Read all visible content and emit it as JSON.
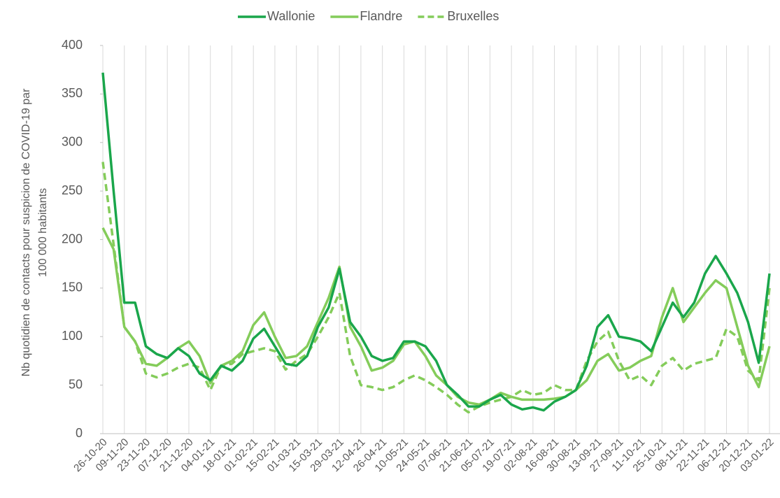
{
  "chart_data": {
    "type": "line",
    "y_label": [
      "Nb quotidien de contacts pour suspicion de COVID-19 par",
      "100 000 habitants"
    ],
    "categories": [
      "26-10-20",
      null,
      "09-11-20",
      null,
      "23-11-20",
      null,
      "07-12-20",
      null,
      "21-12-20",
      null,
      "04-01-21",
      null,
      "18-01-21",
      null,
      "01-02-21",
      null,
      "15-02-21",
      null,
      "01-03-21",
      null,
      "15-03-21",
      null,
      "29-03-21",
      null,
      "12-04-21",
      null,
      "26-04-21",
      null,
      "10-05-21",
      null,
      "24-05-21",
      null,
      "07-06-21",
      null,
      "21-06-21",
      null,
      "05-07-21",
      null,
      "19-07-21",
      null,
      "02-08-21",
      null,
      "16-08-21",
      null,
      "30-08-21",
      null,
      "13-09-21",
      null,
      "27-09-21",
      null,
      "11-10-21",
      null,
      "25-10-21",
      null,
      "08-11-21",
      null,
      "22-11-21",
      null,
      "06-12-21",
      null,
      "20-12-21",
      null,
      "03-01-22"
    ],
    "series": [
      {
        "name": "Wallonie",
        "color": "#1aa64b",
        "dashed": false,
        "values": [
          372,
          250,
          135,
          135,
          90,
          82,
          78,
          88,
          80,
          62,
          55,
          70,
          65,
          75,
          98,
          108,
          90,
          72,
          70,
          80,
          110,
          130,
          170,
          115,
          100,
          80,
          75,
          78,
          95,
          95,
          90,
          75,
          50,
          40,
          28,
          28,
          35,
          40,
          30,
          25,
          27,
          24,
          33,
          38,
          45,
          70,
          110,
          122,
          100,
          98,
          95,
          85,
          110,
          135,
          120,
          135,
          165,
          183,
          165,
          145,
          115,
          73,
          165
        ]
      },
      {
        "name": "Flandre",
        "color": "#84cc5a",
        "dashed": false,
        "values": [
          212,
          190,
          110,
          95,
          72,
          70,
          78,
          88,
          95,
          80,
          52,
          70,
          75,
          85,
          112,
          125,
          100,
          78,
          80,
          90,
          115,
          140,
          172,
          110,
          90,
          65,
          68,
          75,
          92,
          95,
          80,
          60,
          50,
          38,
          32,
          30,
          35,
          42,
          38,
          35,
          35,
          35,
          36,
          38,
          45,
          55,
          75,
          82,
          65,
          68,
          75,
          80,
          120,
          150,
          115,
          130,
          145,
          158,
          150,
          110,
          70,
          48,
          90
        ]
      },
      {
        "name": "Bruxelles",
        "color": "#84cc5a",
        "dashed": true,
        "values": [
          280,
          195,
          110,
          95,
          62,
          58,
          62,
          68,
          72,
          68,
          45,
          70,
          72,
          82,
          85,
          88,
          85,
          66,
          75,
          82,
          100,
          120,
          145,
          80,
          50,
          48,
          45,
          48,
          55,
          60,
          55,
          48,
          40,
          30,
          22,
          28,
          32,
          35,
          38,
          45,
          40,
          42,
          50,
          45,
          45,
          75,
          95,
          105,
          75,
          55,
          60,
          50,
          70,
          78,
          65,
          72,
          75,
          78,
          108,
          100,
          65,
          55,
          150
        ]
      }
    ],
    "ylim": [
      0,
      400
    ],
    "yticks": [
      0,
      50,
      100,
      150,
      200,
      250,
      300,
      350,
      400
    ],
    "grid": true,
    "legend": "top"
  }
}
